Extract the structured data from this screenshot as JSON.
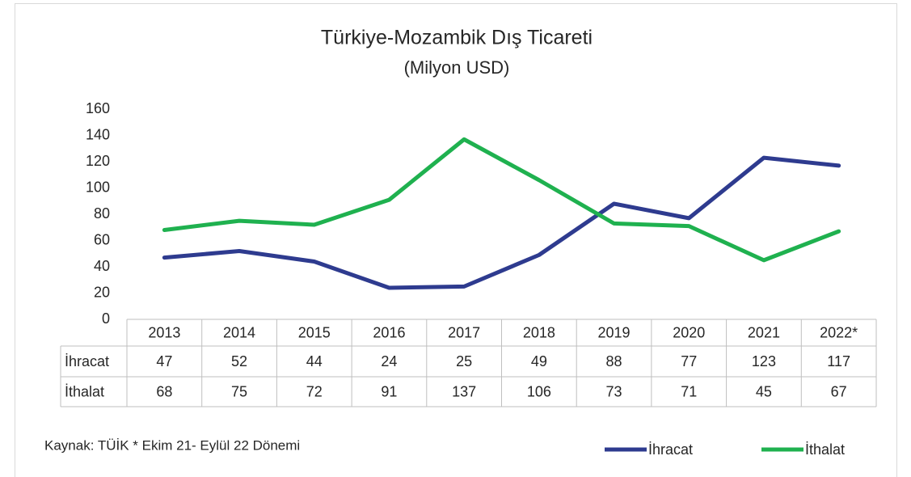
{
  "chart_data": {
    "type": "line",
    "title": "Türkiye-Mozambik Dış Ticareti",
    "subtitle": "(Milyon USD)",
    "categories": [
      "2013",
      "2014",
      "2015",
      "2016",
      "2017",
      "2018",
      "2019",
      "2020",
      "2021",
      "2022*"
    ],
    "series": [
      {
        "name": "İhracat",
        "color": "#2e3b8f",
        "values": [
          47,
          52,
          44,
          24,
          25,
          49,
          88,
          77,
          123,
          117
        ]
      },
      {
        "name": "İthalat",
        "color": "#1fb14f",
        "values": [
          68,
          75,
          72,
          91,
          137,
          106,
          73,
          71,
          45,
          67
        ]
      }
    ],
    "ylim": [
      0,
      160
    ],
    "yticks": [
      0,
      20,
      40,
      60,
      80,
      100,
      120,
      140,
      160
    ],
    "note": "Kaynak: TÜİK * Ekim 21- Eylül 22 Dönemi",
    "legend": "bottom-right"
  }
}
